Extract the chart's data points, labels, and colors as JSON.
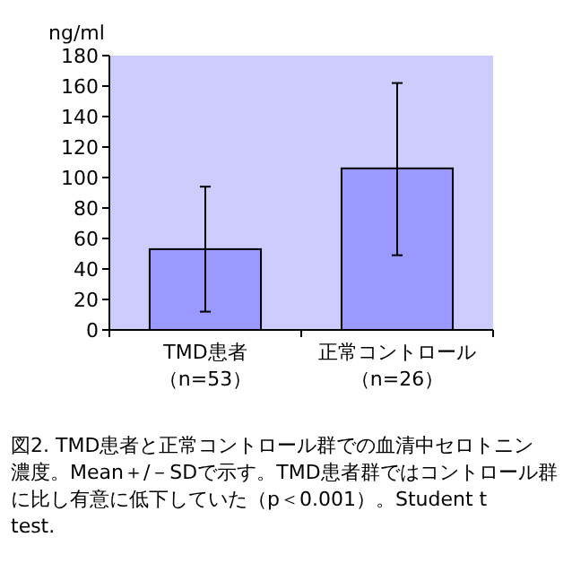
{
  "chart_data": {
    "type": "bar",
    "ylabel": "ng/ml",
    "categories": [
      "TMD患者（n=53）",
      "正常コントロール（n=26）"
    ],
    "values": [
      53,
      106
    ],
    "color": "#9999ff",
    "errors": [
      [
        12,
        94
      ],
      [
        49,
        162
      ]
    ],
    "ylim": [
      0,
      180
    ],
    "yticks": [
      0,
      20,
      40,
      60,
      80,
      100,
      120,
      140,
      160,
      180
    ],
    "grid": false,
    "annotations": [
      "図2. TMD患者と正常コントロール群での血清中セロトニン濃度。Mean＋/－SDで示す。TMD患者群ではコントロール群に比し有意に低下していた（p＜0.001）。Student t test."
    ]
  }
}
